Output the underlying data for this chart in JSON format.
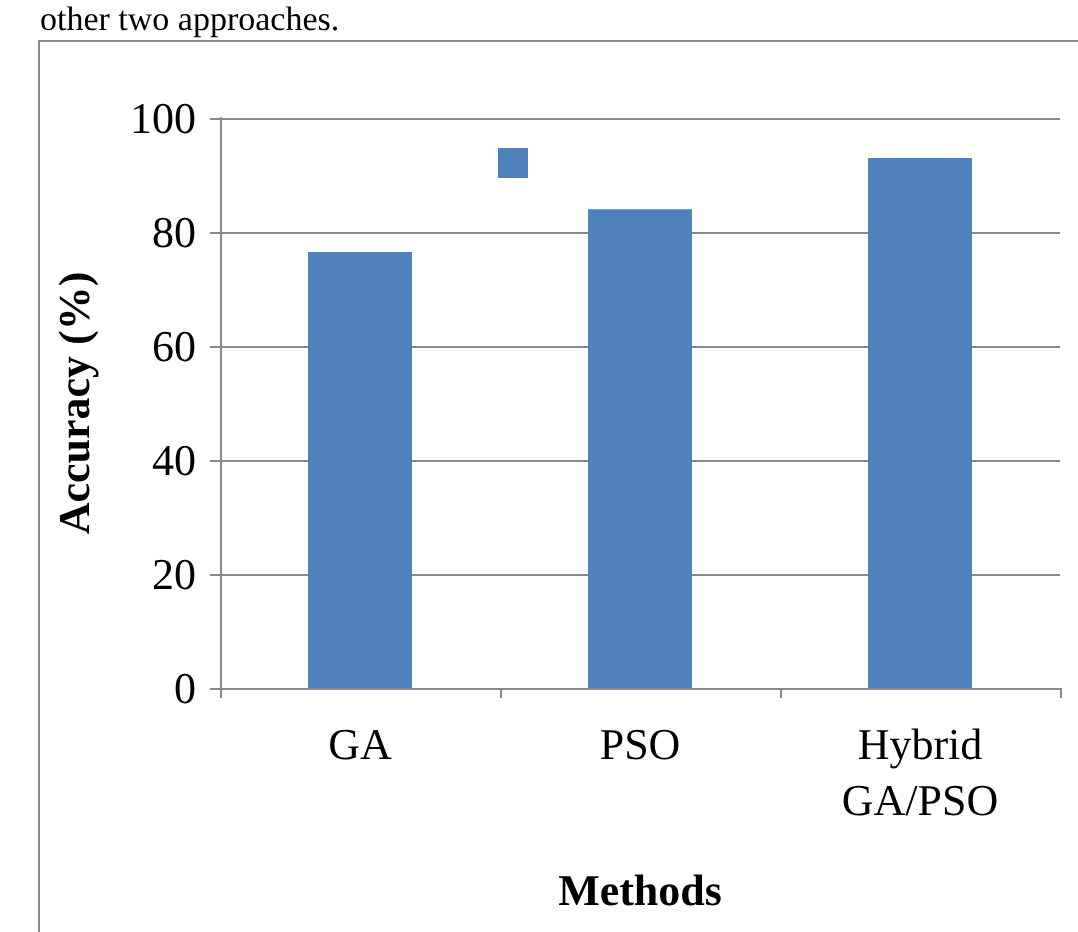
{
  "chart_data": {
    "type": "bar",
    "xlabel": "Methods",
    "ylabel": "Accuracy (%)",
    "annotations": [
      "other two approaches."
    ],
    "categories": [
      "GA",
      "PSO",
      "Hybrid\nGA/PSO"
    ],
    "series": [
      {
        "color": "#4f81bd",
        "values": [
          76.5,
          84,
          93
        ]
      }
    ],
    "ylim": [
      0,
      100
    ],
    "yticks": [
      0,
      20,
      40,
      60,
      80,
      100
    ],
    "grid": "y"
  }
}
